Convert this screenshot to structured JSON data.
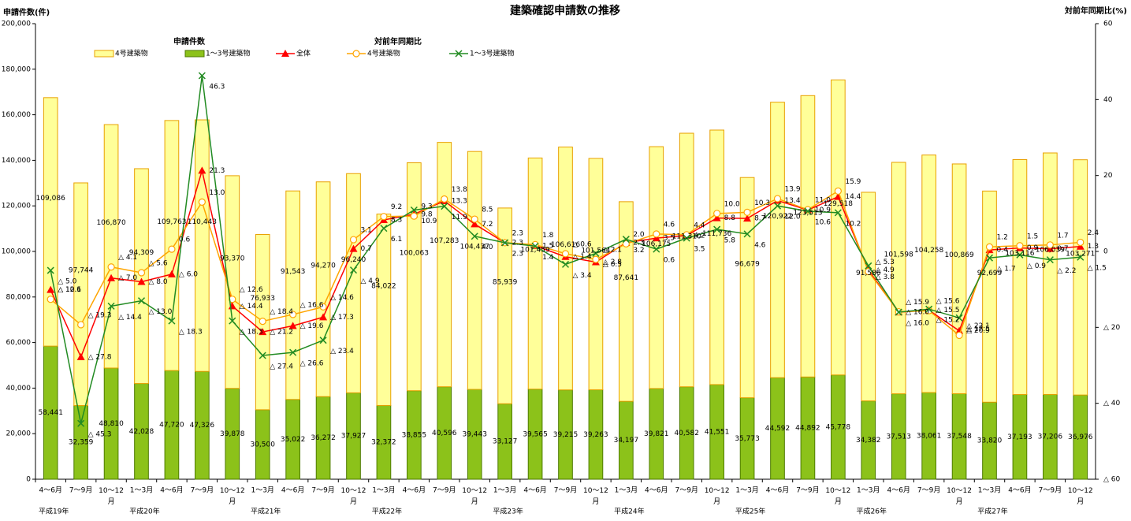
{
  "chart_data": {
    "type": "bar",
    "title": "建築確認申請数の推移",
    "y_label": "申請件数(件)",
    "y2_label": "対前年同期比(%)",
    "legend_titles": {
      "bars": "申請件数",
      "lines": "対前年同期比"
    },
    "categories": [
      "4～6月",
      "7～9月",
      "10～12月",
      "1～3月",
      "4～6月",
      "7～9月",
      "10～12月",
      "1～3月",
      "4～6月",
      "7～9月",
      "10～12月",
      "1～3月",
      "4～6月",
      "7～9月",
      "10～12月",
      "1～3月",
      "4～6月",
      "7～9月",
      "10～12月",
      "1～3月",
      "4～6月",
      "7～9月",
      "10～12月",
      "1～3月",
      "4～6月",
      "7～9月",
      "10～12月",
      "1～3月",
      "4～6月",
      "7～9月",
      "10～12月",
      "1～3月",
      "4～6月",
      "7～9月",
      "10～12月"
    ],
    "year_labels": [
      "平成19年",
      null,
      null,
      "平成20年",
      null,
      null,
      null,
      "平成21年",
      null,
      null,
      null,
      "平成22年",
      null,
      null,
      null,
      "平成23年",
      null,
      null,
      null,
      "平成24年",
      null,
      null,
      null,
      "平成25年",
      null,
      null,
      null,
      "平成26年",
      null,
      null,
      null,
      "平成27年",
      null,
      null,
      null
    ],
    "ylim": [
      0,
      200000
    ],
    "yticks": [
      0,
      {
        "value": 20000,
        "label": "20,000"
      },
      {
        "value": 40000,
        "label": "40,000"
      },
      {
        "value": 60000,
        "label": "60,000"
      },
      {
        "value": 80000,
        "label": "80,000"
      },
      {
        "value": 100000,
        "label": "100,000"
      },
      {
        "value": 120000,
        "label": "120,000"
      },
      {
        "value": 140000,
        "label": "140,000"
      },
      {
        "value": 160000,
        "label": "160,000"
      },
      {
        "value": 180000,
        "label": "180,000"
      },
      {
        "value": 200000,
        "label": "200,000"
      }
    ],
    "y2lim": [
      -60,
      60
    ],
    "y2ticks": [
      {
        "value": -60,
        "label": "△ 60"
      },
      {
        "value": -40,
        "label": "△ 40"
      },
      {
        "value": -20,
        "label": "△ 20"
      },
      0,
      20,
      40,
      60
    ],
    "series": [
      {
        "name": "1～3号建築物",
        "type": "bar",
        "color": "#8cc21a",
        "stroke": "#4d7a00",
        "values": [
          58441,
          32359,
          48810,
          42028,
          47720,
          47326,
          39878,
          30500,
          35022,
          36272,
          37927,
          32372,
          38855,
          40596,
          39443,
          33127,
          39565,
          39215,
          39263,
          34197,
          39821,
          40582,
          41551,
          35773,
          44592,
          44892,
          45778,
          34382,
          37513,
          38061,
          37548,
          33820,
          37193,
          37206,
          36976
        ],
        "value_labels": [
          "58,441",
          "32,359",
          "48,810",
          "42,028",
          "47,720",
          "47,326",
          "39,878",
          "30,500",
          "35,022",
          "36,272",
          "37,927",
          "32,372",
          "38,855",
          "40,596",
          "39,443",
          "33,127",
          "39,565",
          "39,215",
          "39,263",
          "34,197",
          "39,821",
          "40,582",
          "41,551",
          "35,773",
          "44,592",
          "44,892",
          "45,778",
          "34,382",
          "37,513",
          "38,061",
          "37,548",
          "33,820",
          "37,193",
          "37,206",
          "36,976"
        ]
      },
      {
        "name": "4号建築物",
        "type": "bar",
        "color": "#ffff99",
        "stroke": "#e8a000",
        "values": [
          109086,
          97744,
          106870,
          94309,
          109763,
          110443,
          93370,
          76933,
          91543,
          94270,
          96240,
          84022,
          100063,
          107283,
          104437,
          85939,
          101459,
          106616,
          101564,
          87641,
          106175,
          111310,
          111736,
          96679,
          120922,
          123513,
          129518,
          91586,
          101598,
          104258,
          100869,
          92699,
          103116,
          106039,
          103271
        ],
        "value_labels": [
          "109,086",
          "97,744",
          "106,870",
          "94,309",
          "109,763",
          "110,443",
          "93,370",
          "76,933",
          "91,543",
          "94,270",
          "96,240",
          "84,022",
          "100,063",
          "107,283",
          "104,437",
          "85,939",
          "101,459",
          "106,616",
          "101,564",
          "87,641",
          "106,175",
          "111,310",
          "111,736",
          "96,679",
          "120,922",
          "123,513",
          "129,518",
          "91,586",
          "101,598",
          "104,258",
          "100,869",
          "92,699",
          "103,116",
          "106,039",
          "103,271"
        ]
      },
      {
        "name": "全体",
        "type": "line",
        "axis": "y2",
        "marker": "triangle",
        "color": "#ff0000",
        "values": [
          -10.1,
          -27.8,
          -7.0,
          -8.0,
          -6.0,
          21.3,
          -14.4,
          -21.2,
          -19.6,
          -17.3,
          0.7,
          8.3,
          9.8,
          13.3,
          7.2,
          2.3,
          1.5,
          -1.4,
          -2.8,
          2.3,
          3.5,
          4.2,
          8.8,
          8.7,
          13.4,
          10.9,
          14.4,
          -4.9,
          -16.0,
          -15.5,
          -20.9,
          0.4,
          0.9,
          0.7,
          1.3
        ],
        "value_labels": [
          "△ 10.1",
          "△ 27.8",
          "△ 7.0",
          "△ 8.0",
          "△ 6.0",
          "21.3",
          "△ 14.4",
          "△ 21.2",
          "△ 19.6",
          "△ 17.3",
          "0.7",
          "8.3",
          "9.8",
          "13.3",
          "7.2",
          "2.3",
          "1.5",
          "△ 1.4",
          "△ 2.8",
          "2.3",
          "3.5",
          "4.2",
          "8.8",
          "8.7",
          "13.4",
          "10.9",
          "14.4",
          "△ 4.9",
          "△ 16.0",
          "△ 15.5",
          "△ 20.9",
          "0.4",
          "0.9",
          "0.7",
          "1.3"
        ]
      },
      {
        "name": "4号建築物",
        "type": "line",
        "axis": "y2",
        "marker": "circle",
        "color": "#ffa500",
        "values": [
          -12.6,
          -19.3,
          -4.1,
          -5.6,
          0.6,
          13.0,
          -12.6,
          -18.4,
          -16.6,
          -14.6,
          3.1,
          9.2,
          9.3,
          13.8,
          8.5,
          2.3,
          1.8,
          -0.6,
          -2.1,
          2.0,
          4.6,
          4.4,
          10.0,
          10.3,
          13.9,
          11.0,
          15.9,
          -5.3,
          -15.9,
          -15.6,
          -22.1,
          1.2,
          1.5,
          1.7,
          2.4
        ],
        "value_labels": [
          "△ 12.6",
          "△ 19.3",
          "△ 4.1",
          "△ 5.6",
          "0.6",
          "13.0",
          "△ 12.6",
          "△ 18.4",
          "△ 16.6",
          "△ 14.6",
          "3.1",
          "9.2",
          "9.3",
          "13.8",
          "8.5",
          "2.3",
          "1.8",
          "△ 0.6",
          "△ 2.1",
          "2.0",
          "4.6",
          "4.4",
          "10.0",
          "10.3",
          "13.9",
          "11.0",
          "15.9",
          "△ 5.3",
          "△ 15.9",
          "△ 15.6",
          "△ 22.1",
          "1.2",
          "1.5",
          "1.7",
          "2.4"
        ]
      },
      {
        "name": "1～3号建築物",
        "type": "line",
        "axis": "y2",
        "marker": "x",
        "color": "#228b22",
        "values": [
          -5.0,
          -45.3,
          -14.4,
          -13.0,
          -18.3,
          46.3,
          -18.3,
          -27.4,
          -26.6,
          -23.4,
          -4.9,
          6.1,
          10.9,
          11.9,
          4.0,
          2.3,
          1.4,
          -3.4,
          -0.5,
          3.2,
          0.6,
          3.5,
          5.8,
          4.6,
          12.0,
          10.6,
          10.2,
          -3.8,
          -16.0,
          -15.2,
          -17.5,
          -1.7,
          -0.9,
          -2.2,
          -1.5
        ],
        "value_labels": [
          "△ 5.0",
          "△ 45.3",
          "△ 14.4",
          "△ 13.0",
          "△ 18.3",
          "46.3",
          "△ 18.3",
          "△ 27.4",
          "△ 26.6",
          "△ 23.4",
          "△ 4.9",
          "6.1",
          "10.9",
          "11.9",
          "4.0",
          "2.3",
          "1.4",
          "△ 3.4",
          "△ 0.5",
          "3.2",
          "0.6",
          "3.5",
          "5.8",
          "4.6",
          "12.0",
          "10.6",
          "10.2",
          "△ 3.8",
          "△ 16.0",
          "△ 15.2",
          "△ 17.5",
          "△ 1.7",
          "△ 0.9",
          "△ 2.2",
          "△ 1.5"
        ]
      }
    ]
  }
}
